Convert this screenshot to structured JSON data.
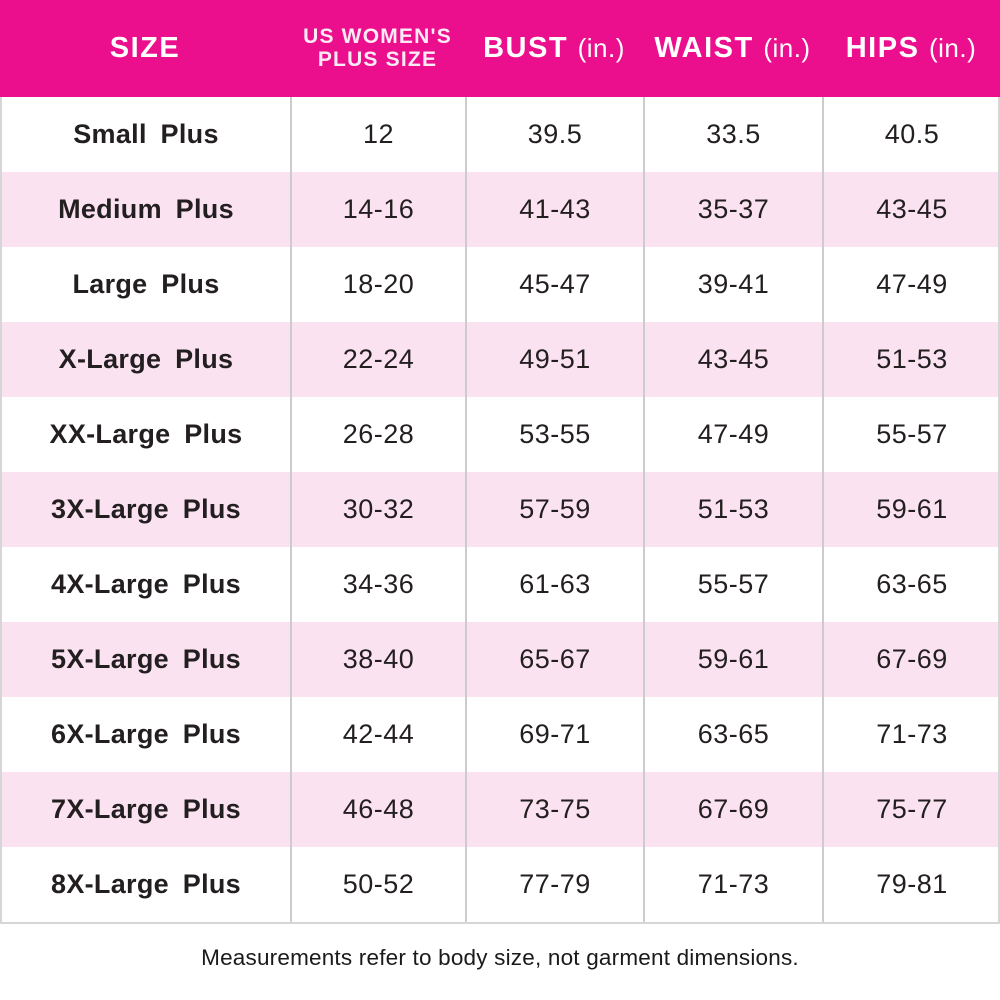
{
  "colors": {
    "header_bg": "#EC0F8D",
    "header_text": "#FFFFFF",
    "row_alt_bg": "#FBE2F0",
    "row_bg": "#FFFFFF",
    "body_text": "#231F20",
    "divider": "#CCCCCC"
  },
  "table": {
    "header": {
      "size": "SIZE",
      "plus_size_line1": "US WOMEN'S",
      "plus_size_line2": "PLUS SIZE",
      "bust": "BUST",
      "waist": "WAIST",
      "hips": "HIPS",
      "unit": "(in.)"
    },
    "rows": [
      {
        "size": "Small Plus",
        "us_plus_size": "12",
        "bust": "39.5",
        "waist": "33.5",
        "hips": "40.5"
      },
      {
        "size": "Medium Plus",
        "us_plus_size": "14-16",
        "bust": "41-43",
        "waist": "35-37",
        "hips": "43-45"
      },
      {
        "size": "Large Plus",
        "us_plus_size": "18-20",
        "bust": "45-47",
        "waist": "39-41",
        "hips": "47-49"
      },
      {
        "size": "X-Large Plus",
        "us_plus_size": "22-24",
        "bust": "49-51",
        "waist": "43-45",
        "hips": "51-53"
      },
      {
        "size": "XX-Large Plus",
        "us_plus_size": "26-28",
        "bust": "53-55",
        "waist": "47-49",
        "hips": "55-57"
      },
      {
        "size": "3X-Large Plus",
        "us_plus_size": "30-32",
        "bust": "57-59",
        "waist": "51-53",
        "hips": "59-61"
      },
      {
        "size": "4X-Large Plus",
        "us_plus_size": "34-36",
        "bust": "61-63",
        "waist": "55-57",
        "hips": "63-65"
      },
      {
        "size": "5X-Large Plus",
        "us_plus_size": "38-40",
        "bust": "65-67",
        "waist": "59-61",
        "hips": "67-69"
      },
      {
        "size": "6X-Large Plus",
        "us_plus_size": "42-44",
        "bust": "69-71",
        "waist": "63-65",
        "hips": "71-73"
      },
      {
        "size": "7X-Large Plus",
        "us_plus_size": "46-48",
        "bust": "73-75",
        "waist": "67-69",
        "hips": "75-77"
      },
      {
        "size": "8X-Large Plus",
        "us_plus_size": "50-52",
        "bust": "77-79",
        "waist": "71-73",
        "hips": "79-81"
      }
    ]
  },
  "footer": {
    "note": "Measurements refer to body size, not garment dimensions."
  },
  "chart_data": {
    "type": "table",
    "title": "US Women's Plus Size Chart",
    "columns": [
      "SIZE",
      "US WOMEN'S PLUS SIZE",
      "BUST (in.)",
      "WAIST (in.)",
      "HIPS (in.)"
    ],
    "rows": [
      [
        "Small Plus",
        "12",
        "39.5",
        "33.5",
        "40.5"
      ],
      [
        "Medium Plus",
        "14-16",
        "41-43",
        "35-37",
        "43-45"
      ],
      [
        "Large Plus",
        "18-20",
        "45-47",
        "39-41",
        "47-49"
      ],
      [
        "X-Large Plus",
        "22-24",
        "49-51",
        "43-45",
        "51-53"
      ],
      [
        "XX-Large Plus",
        "26-28",
        "53-55",
        "47-49",
        "55-57"
      ],
      [
        "3X-Large Plus",
        "30-32",
        "57-59",
        "51-53",
        "59-61"
      ],
      [
        "4X-Large Plus",
        "34-36",
        "61-63",
        "55-57",
        "63-65"
      ],
      [
        "5X-Large Plus",
        "38-40",
        "65-67",
        "59-61",
        "67-69"
      ],
      [
        "6X-Large Plus",
        "42-44",
        "69-71",
        "63-65",
        "71-73"
      ],
      [
        "7X-Large Plus",
        "46-48",
        "73-75",
        "67-69",
        "75-77"
      ],
      [
        "8X-Large Plus",
        "50-52",
        "77-79",
        "71-73",
        "79-81"
      ]
    ],
    "annotations": [
      "Measurements refer to body size, not garment dimensions."
    ],
    "layout": {
      "row_striping": "alternating white / light pink",
      "header_style": "magenta background, white bold text"
    }
  }
}
